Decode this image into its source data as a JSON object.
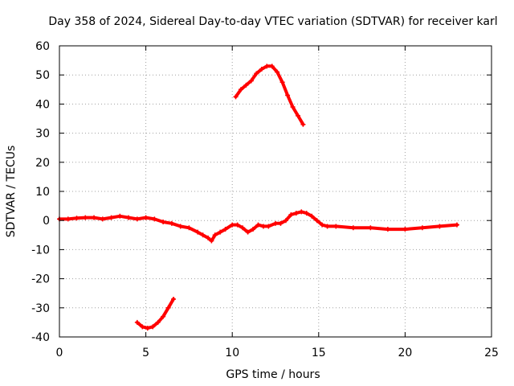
{
  "colors": {
    "series": "#ff0000",
    "axes": "#000000",
    "grid": "#a0a0a0",
    "background": "#ffffff"
  },
  "chart_data": {
    "type": "line",
    "title": "Day 358 of 2024, Sidereal Day-to-day VTEC variation (SDTVAR) for receiver karl",
    "xlabel": "GPS time / hours",
    "ylabel": "SDTVAR / TECUs",
    "xlim": [
      0,
      25
    ],
    "ylim": [
      -40,
      60
    ],
    "xticks": [
      0,
      5,
      10,
      15,
      20,
      25
    ],
    "yticks": [
      -40,
      -30,
      -20,
      -10,
      0,
      10,
      20,
      30,
      40,
      50,
      60
    ],
    "grid": true,
    "series": [
      {
        "name": "main-trace",
        "x": [
          0,
          0.5,
          1,
          1.5,
          2,
          2.5,
          3,
          3.5,
          4,
          4.5,
          5,
          5.5,
          6,
          6.5,
          7,
          7.5,
          8,
          8.3,
          8.6,
          8.8,
          9,
          9.3,
          9.6,
          10,
          10.3,
          10.6,
          10.9,
          11.2,
          11.5,
          11.8,
          12.1,
          12.5,
          12.8,
          13.1,
          13.4,
          13.7,
          14,
          14.3,
          14.6,
          14.9,
          15.2,
          15.5,
          16,
          17,
          18,
          19,
          20,
          21,
          22,
          23
        ],
        "y": [
          0.5,
          0.5,
          0.8,
          1,
          1,
          0.5,
          1,
          1.5,
          1,
          0.5,
          1,
          0.5,
          -0.5,
          -1,
          -2,
          -2.5,
          -4,
          -5,
          -6,
          -7,
          -5,
          -4,
          -3,
          -1.5,
          -1.5,
          -2.5,
          -4,
          -3,
          -1.5,
          -2,
          -2,
          -1,
          -1,
          0,
          2,
          2.5,
          3,
          2.5,
          1.5,
          0,
          -1.5,
          -2,
          -2,
          -2.5,
          -2.5,
          -3,
          -3,
          -2.5,
          -2,
          -1.5
        ]
      },
      {
        "name": "segment-noon",
        "x": [
          10.2,
          10.5,
          10.8,
          11.1,
          11.4,
          11.7,
          12,
          12.3,
          12.6,
          12.9,
          13.2,
          13.5,
          13.8,
          14.1
        ],
        "y": [
          42.5,
          45,
          46.5,
          48,
          50.5,
          52,
          53,
          53,
          51,
          47.5,
          43,
          39,
          36,
          33
        ]
      },
      {
        "name": "segment-morning",
        "x": [
          4.5,
          4.8,
          5.1,
          5.4,
          5.7,
          6,
          6.3,
          6.6
        ],
        "y": [
          -35,
          -36.5,
          -37,
          -36.5,
          -35,
          -33,
          -30,
          -27
        ]
      }
    ]
  }
}
